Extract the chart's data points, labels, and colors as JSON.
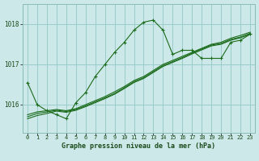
{
  "title": "Graphe pression niveau de la mer (hPa)",
  "bg_color": "#cce8e8",
  "grid_color": "#99cccc",
  "line_color": "#1a6b1a",
  "x_ticks": [
    0,
    1,
    2,
    3,
    4,
    5,
    6,
    7,
    8,
    9,
    10,
    11,
    12,
    13,
    14,
    15,
    16,
    17,
    18,
    19,
    20,
    21,
    22,
    23
  ],
  "y_ticks": [
    1016,
    1017,
    1018
  ],
  "ylim": [
    1015.3,
    1018.5
  ],
  "xlim": [
    -0.5,
    23.5
  ],
  "series1": [
    1016.55,
    1016.0,
    1015.85,
    1015.75,
    1015.65,
    1016.05,
    1016.3,
    1016.7,
    1017.0,
    1017.3,
    1017.55,
    1017.85,
    1018.05,
    1018.1,
    1017.85,
    1017.25,
    1017.35,
    1017.35,
    1017.15,
    1017.15,
    1017.15,
    1017.55,
    1017.6,
    1017.75
  ],
  "series2": [
    1015.75,
    1015.82,
    1015.85,
    1015.88,
    1015.85,
    1015.9,
    1016.0,
    1016.1,
    1016.2,
    1016.32,
    1016.45,
    1016.6,
    1016.7,
    1016.85,
    1017.0,
    1017.1,
    1017.2,
    1017.3,
    1017.4,
    1017.5,
    1017.55,
    1017.65,
    1017.72,
    1017.8
  ],
  "series3": [
    1015.7,
    1015.78,
    1015.82,
    1015.86,
    1015.83,
    1015.88,
    1015.97,
    1016.07,
    1016.17,
    1016.28,
    1016.42,
    1016.57,
    1016.67,
    1016.82,
    1016.97,
    1017.07,
    1017.17,
    1017.28,
    1017.38,
    1017.48,
    1017.52,
    1017.62,
    1017.68,
    1017.77
  ],
  "series4": [
    1015.65,
    1015.73,
    1015.78,
    1015.84,
    1015.81,
    1015.86,
    1015.95,
    1016.05,
    1016.15,
    1016.26,
    1016.4,
    1016.55,
    1016.65,
    1016.8,
    1016.95,
    1017.05,
    1017.15,
    1017.26,
    1017.36,
    1017.46,
    1017.5,
    1017.6,
    1017.66,
    1017.75
  ]
}
